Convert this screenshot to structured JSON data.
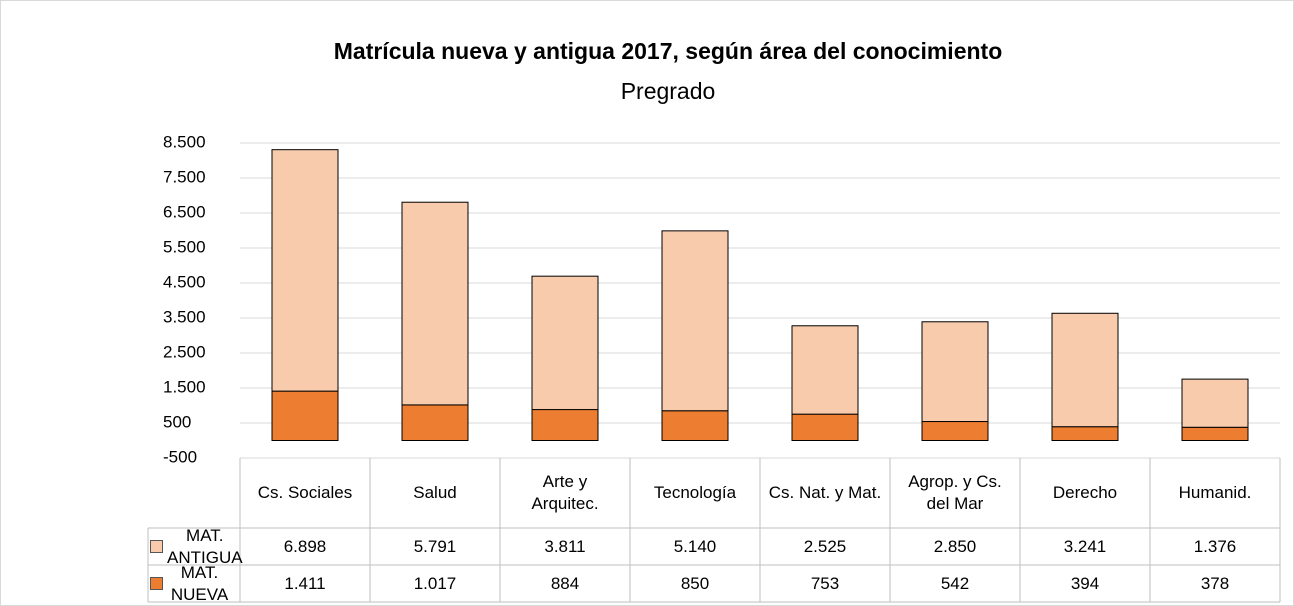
{
  "chart_data": {
    "type": "stacked_bar",
    "title": "Matrícula nueva y antigua 2017, según área del conocimiento",
    "subtitle": "Pregrado",
    "categories": [
      "Cs. Sociales",
      "Salud",
      "Arte y Arquitec.",
      "Tecnología",
      "Cs. Nat. y Mat.",
      "Agrop. y Cs. del Mar",
      "Derecho",
      "Humanid."
    ],
    "series": [
      {
        "name": "MAT. ANTIGUA",
        "color": "#f8cbad",
        "values": [
          6898,
          5791,
          3811,
          5140,
          2525,
          2850,
          3241,
          1376
        ],
        "value_labels": [
          "6.898",
          "5.791",
          "3.811",
          "5.140",
          "2.525",
          "2.850",
          "3.241",
          "1.376"
        ]
      },
      {
        "name": "MAT. NUEVA",
        "color": "#ed7d31",
        "values": [
          1411,
          1017,
          884,
          850,
          753,
          542,
          394,
          378
        ],
        "value_labels": [
          "1.411",
          "1.017",
          "884",
          "850",
          "753",
          "542",
          "394",
          "378"
        ]
      }
    ],
    "ylim": [
      -500,
      8500
    ],
    "yticks": [
      -500,
      500,
      {
        "value": 1500,
        "label": "1.500"
      },
      {
        "value": 2500,
        "label": "2.500"
      },
      {
        "value": 3500,
        "label": "3.500"
      },
      {
        "value": 4500,
        "label": "4.500"
      },
      {
        "value": 5500,
        "label": "5.500"
      },
      {
        "value": 6500,
        "label": "6.500"
      },
      {
        "value": 7500,
        "label": "7.500"
      },
      {
        "value": 8500,
        "label": "8.500"
      }
    ],
    "grid": true
  }
}
